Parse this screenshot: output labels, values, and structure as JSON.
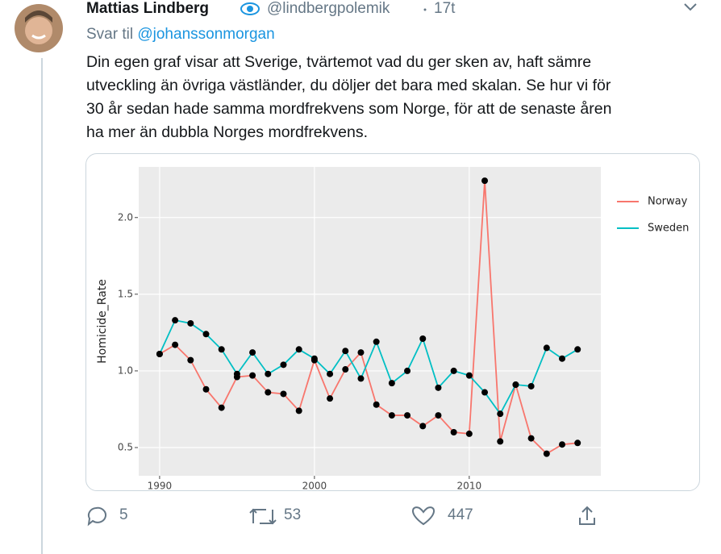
{
  "tweet": {
    "name": "Mattias Lindberg",
    "handle": "@lindbergpolemik",
    "time": "17t",
    "reply_prefix": "Svar til",
    "reply_to": "@johanssonmorgan",
    "body_lines": [
      "Din egen graf visar att Sverige, tvärtemot vad du ger sken av, haft sämre",
      "utveckling än övriga västländer, du döljer det bara med skalan. Se hur vi för",
      "30 år sedan hade samma mordfrekvens som Norge, för att de senaste åren",
      "ha mer än dubbla Norges mordfrekvens."
    ],
    "replies": "5",
    "retweets": "53",
    "likes": "447"
  },
  "chart_data": {
    "type": "line",
    "y_label": "Homicide_Rate",
    "x": [
      1990,
      1991,
      1992,
      1993,
      1994,
      1995,
      1996,
      1997,
      1998,
      1999,
      2000,
      2001,
      2002,
      2003,
      2004,
      2005,
      2006,
      2007,
      2008,
      2009,
      2010,
      2011,
      2012,
      2013,
      2014,
      2015,
      2016,
      2017
    ],
    "series": [
      {
        "name": "Norway",
        "color": "#f8766d",
        "values": [
          1.11,
          1.17,
          1.07,
          0.88,
          0.76,
          0.96,
          0.97,
          0.86,
          0.85,
          0.74,
          1.07,
          0.82,
          1.01,
          1.12,
          0.78,
          0.71,
          0.71,
          0.64,
          0.71,
          0.6,
          0.59,
          2.24,
          0.54,
          0.91,
          0.56,
          0.46,
          0.52,
          0.53
        ]
      },
      {
        "name": "Sweden",
        "color": "#00bfc4",
        "values": [
          1.11,
          1.33,
          1.31,
          1.24,
          1.14,
          0.98,
          1.12,
          0.98,
          1.04,
          1.14,
          1.08,
          0.98,
          1.13,
          0.95,
          1.19,
          0.92,
          1.0,
          1.21,
          0.89,
          1.0,
          0.97,
          0.86,
          0.72,
          0.91,
          0.9,
          1.15,
          1.08,
          1.14
        ]
      }
    ],
    "point_color": "#000000",
    "xlim": [
      1988.65,
      2018.5
    ],
    "xticks": [
      1990,
      2000,
      2010
    ],
    "ylim": [
      0.316,
      2.33
    ],
    "yticks": [
      0.5,
      {
        "value": 1,
        "label": "1.0"
      },
      1.5,
      {
        "value": 2,
        "label": "2.0"
      }
    ],
    "grid": true,
    "legend": "right"
  }
}
